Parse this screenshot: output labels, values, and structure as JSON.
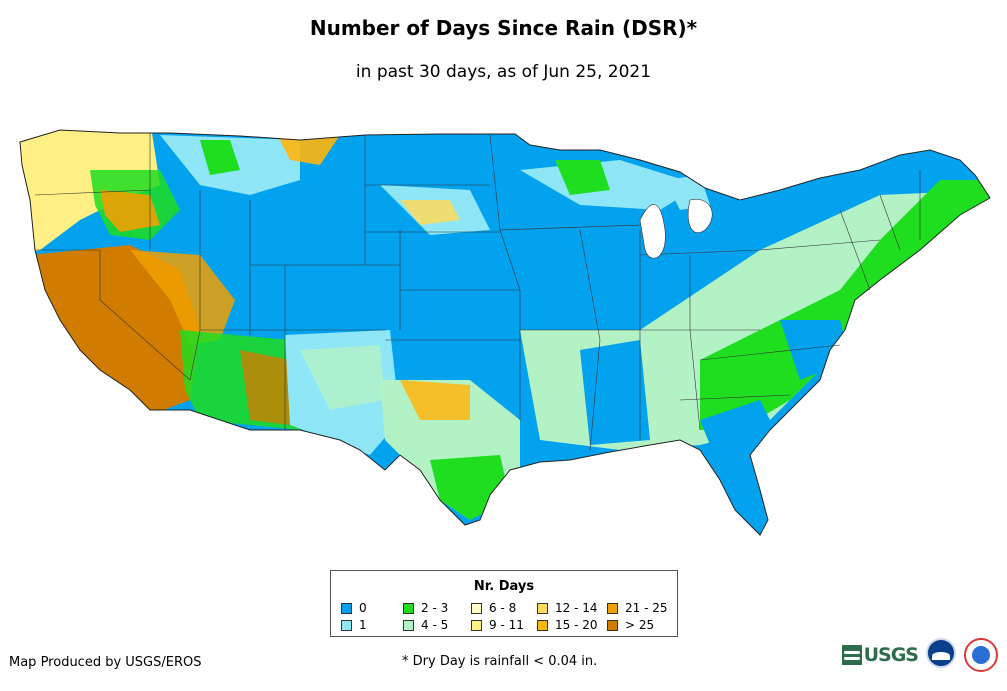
{
  "title": "Number of Days Since Rain (DSR)*",
  "subtitle": "in past 30 days, as of Jun 25, 2021",
  "legend": {
    "title": "Nr. Days",
    "items": [
      {
        "label": "0",
        "color": "#03a2ef"
      },
      {
        "label": "1",
        "color": "#8fe6f7"
      },
      {
        "label": "2 - 3",
        "color": "#1fdd1f"
      },
      {
        "label": "4 - 5",
        "color": "#b3f2c5"
      },
      {
        "label": "6 - 8",
        "color": "#fffdc7"
      },
      {
        "label": "9 - 11",
        "color": "#fff085"
      },
      {
        "label": "12 - 14",
        "color": "#ffda5c"
      },
      {
        "label": "15 - 20",
        "color": "#ffb60c"
      },
      {
        "label": "21 - 25",
        "color": "#f0a000"
      },
      {
        "label": "> 25",
        "color": "#d07c00"
      }
    ]
  },
  "footer": {
    "credit": "Map Produced by USGS/EROS",
    "footnote": "* Dry Day is rainfall < 0.04 in."
  },
  "logos": {
    "usgs": "USGS"
  }
}
